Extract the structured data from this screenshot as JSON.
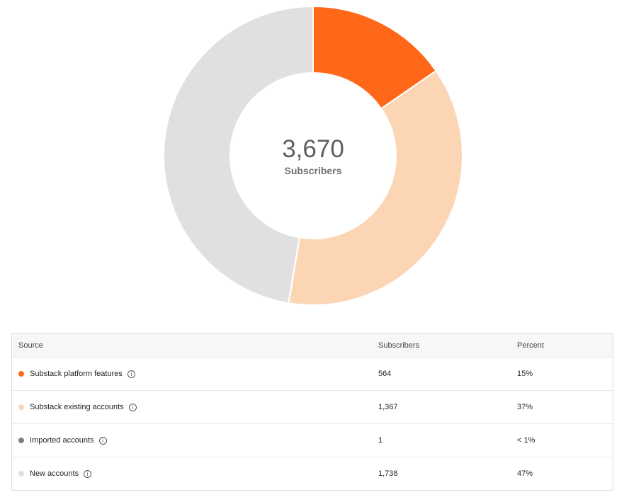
{
  "chart_data": {
    "type": "pie",
    "categories": [
      "Substack platform features",
      "Substack existing accounts",
      "Imported accounts",
      "New accounts"
    ],
    "values": [
      564,
      1367,
      1,
      1738
    ],
    "colors": [
      "#ff6719",
      "#fcd5b4",
      "#808080",
      "#e0e0e0"
    ],
    "center_total": "3,670",
    "center_label": "Subscribers"
  },
  "table": {
    "headers": {
      "source": "Source",
      "subscribers": "Subscribers",
      "percent": "Percent"
    },
    "rows": [
      {
        "source": "Substack platform features",
        "subscribers": "564",
        "percent": "15%",
        "color": "#ff6719"
      },
      {
        "source": "Substack existing accounts",
        "subscribers": "1,367",
        "percent": "37%",
        "color": "#fcd5b4"
      },
      {
        "source": "Imported accounts",
        "subscribers": "1",
        "percent": "< 1%",
        "color": "#808080"
      },
      {
        "source": "New accounts",
        "subscribers": "1,738",
        "percent": "47%",
        "color": "#e0e0e0"
      }
    ],
    "info_icon": "info-icon"
  }
}
